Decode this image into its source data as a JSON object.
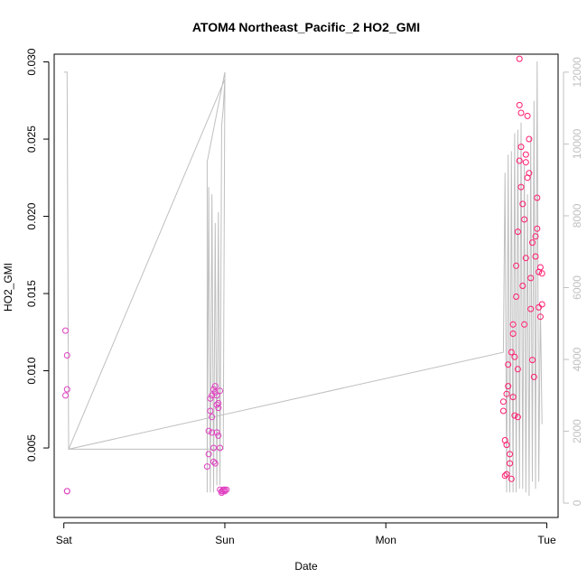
{
  "chart_data": {
    "type": "scatter",
    "title": "ATOM4 Northeast_Pacific_2 HO2_GMI",
    "xlabel": "Date",
    "ylabel": "HO2_GMI",
    "x_tick_labels": [
      "Sat",
      "Sun",
      "Mon",
      "Tue"
    ],
    "x_ticks": [
      0,
      1,
      2,
      3
    ],
    "xlim": [
      -0.06,
      3.07
    ],
    "ylim": [
      0.0005,
      0.0305
    ],
    "y_ticks": [
      0.005,
      0.01,
      0.015,
      0.02,
      0.025,
      0.03
    ],
    "y_tick_labels": [
      "0.005",
      "0.010",
      "0.015",
      "0.020",
      "0.025",
      "0.030"
    ],
    "y2lim": [
      -400,
      12500
    ],
    "y2_ticks": [
      0,
      2000,
      4000,
      6000,
      8000,
      10000,
      12000
    ],
    "y2_tick_labels": [
      "0",
      "2000",
      "4000",
      "6000",
      "8000",
      "10000",
      "12000"
    ],
    "grid": false,
    "colors": {
      "points_early": "#e040c0",
      "points_late": "#ff1a6e",
      "altitude_line": "#bfbfbf",
      "axis": "#000000",
      "right_axis": "#c0c0c0"
    },
    "series": [
      {
        "kind": "points",
        "x": [
          0.01,
          0.01,
          0.02,
          0.02,
          0.02,
          0.02,
          0.89,
          0.9,
          0.9,
          0.91,
          0.91,
          0.92,
          0.92,
          0.92,
          0.93,
          0.93,
          0.93,
          0.94,
          0.94,
          0.94,
          0.95,
          0.95,
          0.95,
          0.96,
          0.96,
          0.96,
          0.97,
          0.97,
          0.97,
          0.98,
          0.98,
          0.99,
          0.99,
          1.0,
          1.0,
          1.01,
          2.73,
          2.73,
          2.74,
          2.74,
          2.75,
          2.75,
          2.75,
          2.76,
          2.76,
          2.77,
          2.77,
          2.78,
          2.78,
          2.79,
          2.79,
          2.79,
          2.8,
          2.8,
          2.81,
          2.81,
          2.82,
          2.82,
          2.82,
          2.83,
          2.83,
          2.83,
          2.84,
          2.84,
          2.84,
          2.85,
          2.85,
          2.86,
          2.86,
          2.87,
          2.87,
          2.87,
          2.88,
          2.88,
          2.89,
          2.89,
          2.9,
          2.9,
          2.91,
          2.91,
          2.92,
          2.93,
          2.93,
          2.94,
          2.94,
          2.95,
          2.95,
          2.96,
          2.96,
          2.97,
          2.97
        ],
        "y": [
          0.0126,
          0.0084,
          0.011,
          0.0088,
          0.0022,
          0.0022,
          0.0038,
          0.0061,
          0.0046,
          0.0074,
          0.0082,
          0.0084,
          0.007,
          0.006,
          0.0088,
          0.005,
          0.0041,
          0.009,
          0.0086,
          0.004,
          0.0084,
          0.0078,
          0.006,
          0.0076,
          0.0079,
          0.0058,
          0.0087,
          0.005,
          0.0023,
          0.0022,
          0.0021,
          0.0022,
          0.0023,
          0.0022,
          0.0023,
          0.0023,
          0.0074,
          0.008,
          0.0055,
          0.0032,
          0.0085,
          0.0052,
          0.0033,
          0.009,
          0.0104,
          0.0046,
          0.004,
          0.0112,
          0.003,
          0.0124,
          0.0083,
          0.013,
          0.0109,
          0.0071,
          0.0168,
          0.0148,
          0.019,
          0.0101,
          0.007,
          0.0236,
          0.0272,
          0.0302,
          0.0267,
          0.0219,
          0.0245,
          0.0208,
          0.0155,
          0.0198,
          0.013,
          0.024,
          0.0173,
          0.0235,
          0.0225,
          0.0265,
          0.025,
          0.0228,
          0.014,
          0.016,
          0.0107,
          0.0183,
          0.0096,
          0.0187,
          0.0174,
          0.0212,
          0.0192,
          0.0164,
          0.0141,
          0.0167,
          0.0135,
          0.0163,
          0.0143
        ]
      },
      {
        "kind": "line",
        "name": "",
        "axis": "right",
        "x": [
          0.0,
          0.02,
          0.03,
          0.99,
          1.0,
          1.0,
          0.89,
          0.89,
          0.9,
          0.91,
          0.92,
          0.93,
          0.94,
          0.95,
          0.96,
          0.97,
          0.98,
          0.99,
          1.0,
          0.03,
          2.73,
          2.74,
          2.75,
          2.76,
          2.77,
          2.78,
          2.79,
          2.8,
          2.81,
          2.82,
          2.83,
          2.84,
          2.85,
          2.86,
          2.87,
          2.88,
          2.89,
          2.9,
          2.91,
          2.92,
          2.93,
          2.94,
          2.95,
          2.96,
          2.97
        ],
        "y": [
          12000,
          12000,
          1500,
          1500,
          12000,
          12000,
          9500,
          300,
          8800,
          300,
          8600,
          300,
          7800,
          500,
          8100,
          500,
          10500,
          11000,
          11800,
          1500,
          4200,
          9200,
          300,
          9700,
          300,
          9800,
          300,
          10300,
          300,
          10400,
          400,
          10600,
          400,
          9400,
          300,
          8600,
          200,
          10200,
          600,
          11200,
          400,
          12300,
          600,
          5500,
          2200
        ]
      }
    ]
  }
}
